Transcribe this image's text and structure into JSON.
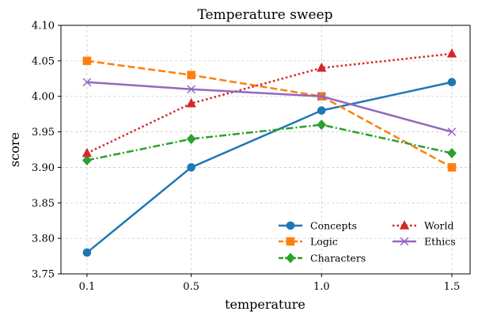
{
  "chart_data": {
    "type": "line",
    "title": "Temperature sweep",
    "xlabel": "temperature",
    "ylabel": "score",
    "x": [
      0.1,
      0.5,
      1.0,
      1.5
    ],
    "x_tick_labels": [
      "0.1",
      "0.5",
      "1.0",
      "1.5"
    ],
    "ylim": [
      3.75,
      4.1
    ],
    "y_ticks": [
      3.75,
      3.8,
      3.85,
      3.9,
      3.95,
      4.0,
      4.05,
      4.1
    ],
    "y_tick_labels": [
      "3.75",
      "3.80",
      "3.85",
      "3.90",
      "3.95",
      "4.00",
      "4.05",
      "4.10"
    ],
    "grid": true,
    "legend_position": "lower-right",
    "series": [
      {
        "name": "Concepts",
        "values": [
          3.78,
          3.9,
          3.98,
          4.02
        ],
        "color": "#1f77b4",
        "marker": "circle",
        "dash": "solid"
      },
      {
        "name": "Logic",
        "values": [
          4.05,
          4.03,
          4.0,
          3.9
        ],
        "color": "#ff7f0e",
        "marker": "square",
        "dash": "dashed"
      },
      {
        "name": "Characters",
        "values": [
          3.91,
          3.94,
          3.96,
          3.92
        ],
        "color": "#2ca02c",
        "marker": "diamond",
        "dash": "dashdot"
      },
      {
        "name": "World",
        "values": [
          3.92,
          3.99,
          4.04,
          4.06
        ],
        "color": "#d62728",
        "marker": "triangle",
        "dash": "dotted"
      },
      {
        "name": "Ethics",
        "values": [
          4.02,
          4.01,
          4.0,
          3.95
        ],
        "color": "#9467bd",
        "marker": "x",
        "dash": "solid"
      }
    ]
  }
}
